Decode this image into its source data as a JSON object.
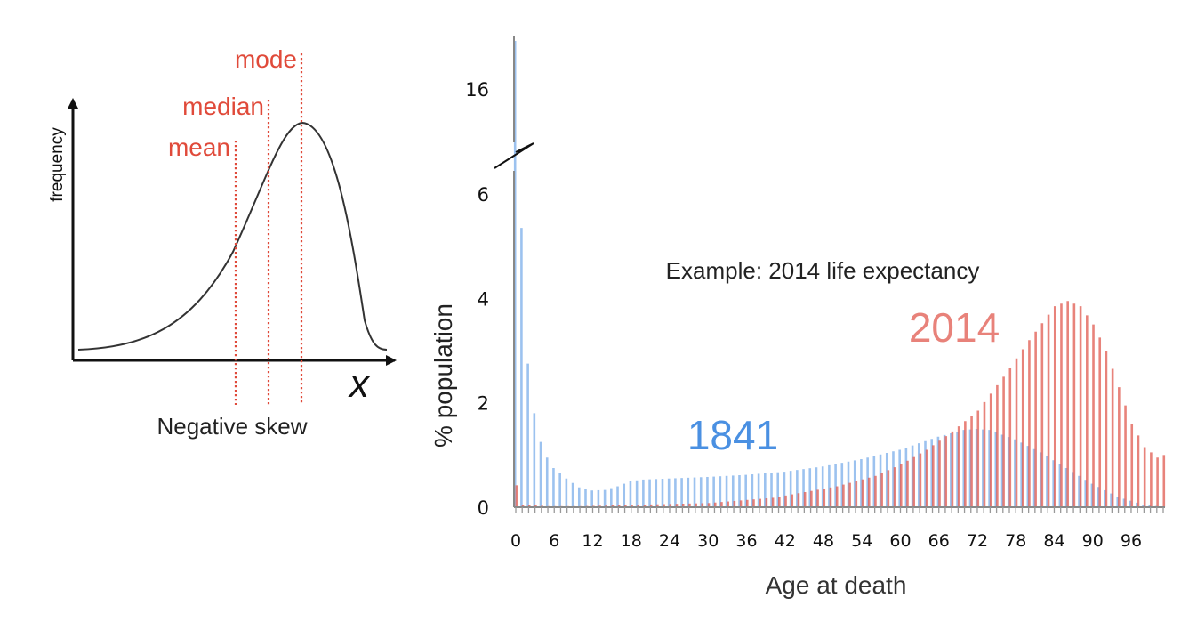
{
  "colors": {
    "series_1841": "#4a90e2",
    "series_2014": "#e05a4f",
    "marker_red": "#e04a3a",
    "axis": "#111111",
    "curve": "#333333"
  },
  "chart_data": [
    {
      "type": "line",
      "xlabel": "",
      "ylabel": "frequency",
      "x_symbol": "x",
      "caption": "Negative skew",
      "markers": [
        {
          "label": "mean"
        },
        {
          "label": "median"
        },
        {
          "label": "mode"
        }
      ],
      "shape": "left-skewed unimodal density curve"
    },
    {
      "type": "bar",
      "annotation": "Example: 2014 life expectancy",
      "xlabel": "Age at death",
      "ylabel": "% population",
      "xlim": [
        0,
        101
      ],
      "ylim": [
        0,
        18
      ],
      "broken_axis": {
        "lower": [
          0,
          6.5
        ],
        "upper": [
          15,
          18
        ]
      },
      "yticks": [
        0,
        2,
        4,
        6,
        16
      ],
      "xticks": [
        0,
        6,
        12,
        18,
        24,
        30,
        36,
        42,
        48,
        54,
        60,
        66,
        72,
        78,
        84,
        90,
        96
      ],
      "grid": false,
      "series": [
        {
          "name": "1841",
          "color": "#4a90e2",
          "points": [
            [
              0,
              17.5
            ],
            [
              1,
              5.35
            ],
            [
              2,
              2.75
            ],
            [
              3,
              1.8
            ],
            [
              4,
              1.25
            ],
            [
              5,
              0.95
            ],
            [
              6,
              0.75
            ],
            [
              8,
              0.55
            ],
            [
              10,
              0.38
            ],
            [
              12,
              0.32
            ],
            [
              14,
              0.33
            ],
            [
              16,
              0.4
            ],
            [
              18,
              0.5
            ],
            [
              20,
              0.53
            ],
            [
              24,
              0.55
            ],
            [
              30,
              0.58
            ],
            [
              36,
              0.62
            ],
            [
              42,
              0.68
            ],
            [
              48,
              0.78
            ],
            [
              54,
              0.92
            ],
            [
              60,
              1.1
            ],
            [
              66,
              1.35
            ],
            [
              70,
              1.48
            ],
            [
              72,
              1.5
            ],
            [
              74,
              1.48
            ],
            [
              78,
              1.3
            ],
            [
              82,
              1.05
            ],
            [
              86,
              0.75
            ],
            [
              90,
              0.45
            ],
            [
              94,
              0.2
            ],
            [
              98,
              0.05
            ],
            [
              101,
              0.01
            ]
          ]
        },
        {
          "name": "2014",
          "color": "#e05a4f",
          "points": [
            [
              0,
              0.42
            ],
            [
              1,
              0.05
            ],
            [
              5,
              0.02
            ],
            [
              10,
              0.02
            ],
            [
              20,
              0.05
            ],
            [
              30,
              0.08
            ],
            [
              40,
              0.18
            ],
            [
              50,
              0.4
            ],
            [
              56,
              0.6
            ],
            [
              60,
              0.82
            ],
            [
              64,
              1.1
            ],
            [
              68,
              1.45
            ],
            [
              72,
              1.85
            ],
            [
              76,
              2.5
            ],
            [
              80,
              3.2
            ],
            [
              84,
              3.85
            ],
            [
              86,
              3.95
            ],
            [
              88,
              3.85
            ],
            [
              90,
              3.5
            ],
            [
              92,
              3.0
            ],
            [
              94,
              2.3
            ],
            [
              96,
              1.6
            ],
            [
              98,
              1.15
            ],
            [
              100,
              0.95
            ],
            [
              101,
              1.0
            ]
          ]
        }
      ]
    }
  ]
}
